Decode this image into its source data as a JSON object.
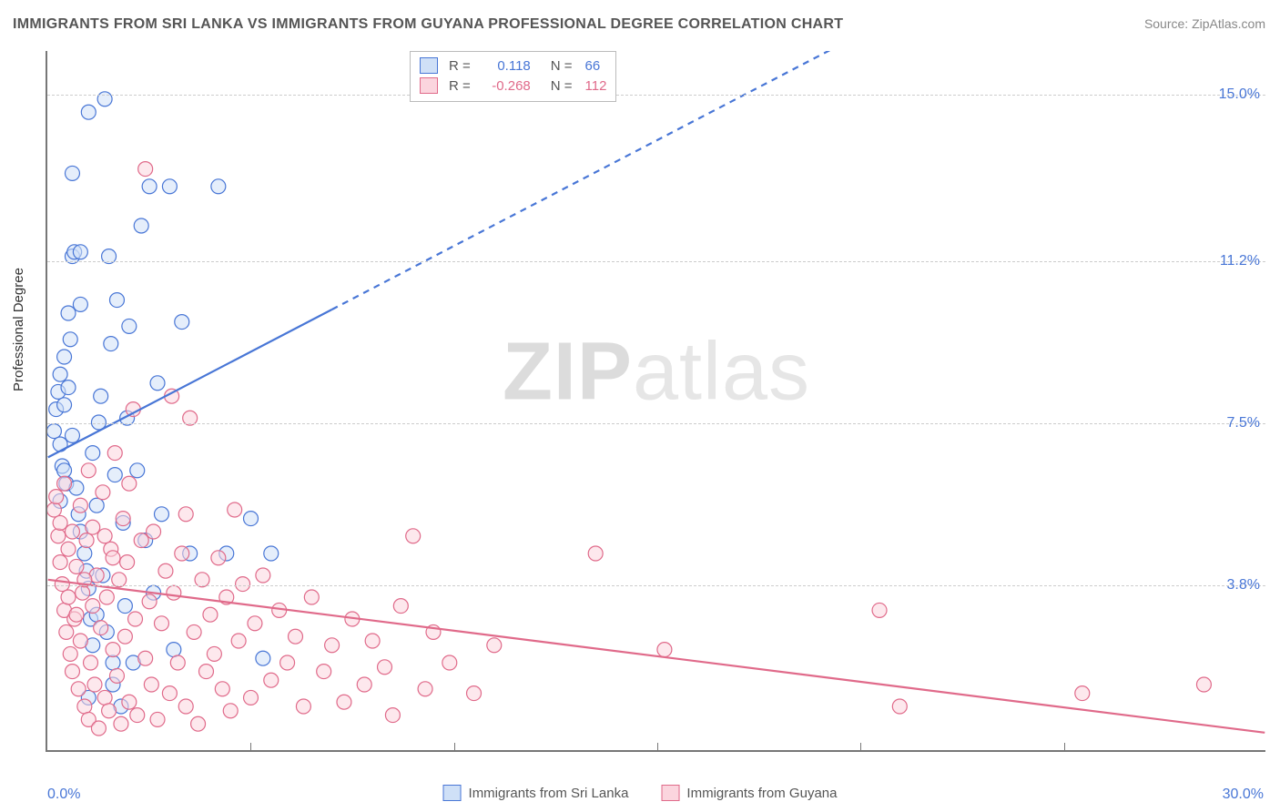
{
  "title": "IMMIGRANTS FROM SRI LANKA VS IMMIGRANTS FROM GUYANA PROFESSIONAL DEGREE CORRELATION CHART",
  "source_label": "Source: ",
  "source_name": "ZipAtlas.com",
  "watermark_a": "ZIP",
  "watermark_b": "atlas",
  "ylabel": "Professional Degree",
  "chart": {
    "type": "scatter",
    "background_color": "#ffffff",
    "grid_color": "#cccccc",
    "xlim": [
      0.0,
      30.0
    ],
    "ylim": [
      0.0,
      16.0
    ],
    "yticks": [
      3.8,
      7.5,
      11.2,
      15.0
    ],
    "ytick_labels": [
      "3.8%",
      "7.5%",
      "11.2%",
      "15.0%"
    ],
    "xtick_min": "0.0%",
    "xtick_max": "30.0%",
    "x_minor_ticks": [
      5,
      10,
      15,
      20,
      25
    ],
    "marker_radius": 8,
    "marker_stroke_width": 1.2,
    "series": [
      {
        "name": "Immigrants from Sri Lanka",
        "color_fill": "#cfe0f7",
        "color_stroke": "#4876d6",
        "fill_opacity": 0.55,
        "R": "0.118",
        "N": "66",
        "trend": {
          "y_at_xmin": 6.7,
          "y_at_xmax": 21.2,
          "solid_until_x": 7.0,
          "stroke_width": 2.2,
          "dash": "7,6"
        },
        "points": [
          [
            0.15,
            7.3
          ],
          [
            0.2,
            7.8
          ],
          [
            0.25,
            8.2
          ],
          [
            0.3,
            7.0
          ],
          [
            0.3,
            8.6
          ],
          [
            0.35,
            6.5
          ],
          [
            0.4,
            7.9
          ],
          [
            0.4,
            9.0
          ],
          [
            0.45,
            6.1
          ],
          [
            0.5,
            10.0
          ],
          [
            0.5,
            8.3
          ],
          [
            0.55,
            9.4
          ],
          [
            0.6,
            7.2
          ],
          [
            0.6,
            11.3
          ],
          [
            0.65,
            11.4
          ],
          [
            0.7,
            6.0
          ],
          [
            0.75,
            5.4
          ],
          [
            0.8,
            5.0
          ],
          [
            0.8,
            10.2
          ],
          [
            0.9,
            4.5
          ],
          [
            0.95,
            4.1
          ],
          [
            1.0,
            3.7
          ],
          [
            1.0,
            14.6
          ],
          [
            1.05,
            3.0
          ],
          [
            1.1,
            6.8
          ],
          [
            1.1,
            2.4
          ],
          [
            1.2,
            5.6
          ],
          [
            1.25,
            7.5
          ],
          [
            1.3,
            8.1
          ],
          [
            1.35,
            4.0
          ],
          [
            1.4,
            14.9
          ],
          [
            1.45,
            2.7
          ],
          [
            1.5,
            11.3
          ],
          [
            1.55,
            9.3
          ],
          [
            1.6,
            1.5
          ],
          [
            1.65,
            6.3
          ],
          [
            1.7,
            10.3
          ],
          [
            1.8,
            1.0
          ],
          [
            1.85,
            5.2
          ],
          [
            1.9,
            3.3
          ],
          [
            1.95,
            7.6
          ],
          [
            2.0,
            9.7
          ],
          [
            2.1,
            2.0
          ],
          [
            2.2,
            6.4
          ],
          [
            2.3,
            12.0
          ],
          [
            2.4,
            4.8
          ],
          [
            2.5,
            12.9
          ],
          [
            2.6,
            3.6
          ],
          [
            2.7,
            8.4
          ],
          [
            2.8,
            5.4
          ],
          [
            3.0,
            12.9
          ],
          [
            3.1,
            2.3
          ],
          [
            3.3,
            9.8
          ],
          [
            3.5,
            4.5
          ],
          [
            0.6,
            13.2
          ],
          [
            4.2,
            12.9
          ],
          [
            4.4,
            4.5
          ],
          [
            5.0,
            5.3
          ],
          [
            5.3,
            2.1
          ],
          [
            5.5,
            4.5
          ],
          [
            0.8,
            11.4
          ],
          [
            1.6,
            2.0
          ],
          [
            1.0,
            1.2
          ],
          [
            0.3,
            5.7
          ],
          [
            0.4,
            6.4
          ],
          [
            1.2,
            3.1
          ]
        ]
      },
      {
        "name": "Immigrants from Guyana",
        "color_fill": "#fbd5de",
        "color_stroke": "#e06a8a",
        "fill_opacity": 0.55,
        "R": "-0.268",
        "N": "112",
        "trend": {
          "y_at_xmin": 3.9,
          "y_at_xmax": 0.4,
          "solid_until_x": 30.0,
          "stroke_width": 2.2,
          "dash": ""
        },
        "points": [
          [
            0.15,
            5.5
          ],
          [
            0.2,
            5.8
          ],
          [
            0.25,
            4.9
          ],
          [
            0.3,
            4.3
          ],
          [
            0.3,
            5.2
          ],
          [
            0.35,
            3.8
          ],
          [
            0.4,
            3.2
          ],
          [
            0.4,
            6.1
          ],
          [
            0.45,
            2.7
          ],
          [
            0.5,
            4.6
          ],
          [
            0.5,
            3.5
          ],
          [
            0.55,
            2.2
          ],
          [
            0.6,
            5.0
          ],
          [
            0.6,
            1.8
          ],
          [
            0.65,
            3.0
          ],
          [
            0.7,
            4.2
          ],
          [
            0.75,
            1.4
          ],
          [
            0.8,
            5.6
          ],
          [
            0.8,
            2.5
          ],
          [
            0.85,
            3.6
          ],
          [
            0.9,
            1.0
          ],
          [
            0.95,
            4.8
          ],
          [
            1.0,
            0.7
          ],
          [
            1.0,
            6.4
          ],
          [
            1.05,
            2.0
          ],
          [
            1.1,
            3.3
          ],
          [
            1.1,
            5.1
          ],
          [
            1.15,
            1.5
          ],
          [
            1.2,
            4.0
          ],
          [
            1.25,
            0.5
          ],
          [
            1.3,
            2.8
          ],
          [
            1.35,
            5.9
          ],
          [
            1.4,
            1.2
          ],
          [
            1.45,
            3.5
          ],
          [
            1.5,
            0.9
          ],
          [
            1.55,
            4.6
          ],
          [
            1.6,
            2.3
          ],
          [
            1.65,
            6.8
          ],
          [
            1.7,
            1.7
          ],
          [
            1.75,
            3.9
          ],
          [
            1.8,
            0.6
          ],
          [
            1.85,
            5.3
          ],
          [
            1.9,
            2.6
          ],
          [
            1.95,
            4.3
          ],
          [
            2.0,
            1.1
          ],
          [
            2.1,
            7.8
          ],
          [
            2.15,
            3.0
          ],
          [
            2.2,
            0.8
          ],
          [
            2.3,
            4.8
          ],
          [
            2.4,
            2.1
          ],
          [
            2.5,
            3.4
          ],
          [
            2.55,
            1.5
          ],
          [
            2.6,
            5.0
          ],
          [
            2.7,
            0.7
          ],
          [
            2.8,
            2.9
          ],
          [
            2.9,
            4.1
          ],
          [
            3.0,
            1.3
          ],
          [
            3.05,
            8.1
          ],
          [
            3.1,
            3.6
          ],
          [
            3.2,
            2.0
          ],
          [
            3.3,
            4.5
          ],
          [
            3.4,
            1.0
          ],
          [
            3.5,
            7.6
          ],
          [
            3.6,
            2.7
          ],
          [
            3.7,
            0.6
          ],
          [
            3.8,
            3.9
          ],
          [
            3.9,
            1.8
          ],
          [
            4.0,
            3.1
          ],
          [
            4.1,
            2.2
          ],
          [
            4.2,
            4.4
          ],
          [
            4.3,
            1.4
          ],
          [
            4.4,
            3.5
          ],
          [
            4.5,
            0.9
          ],
          [
            4.7,
            2.5
          ],
          [
            4.8,
            3.8
          ],
          [
            5.0,
            1.2
          ],
          [
            5.1,
            2.9
          ],
          [
            5.3,
            4.0
          ],
          [
            5.5,
            1.6
          ],
          [
            5.7,
            3.2
          ],
          [
            5.9,
            2.0
          ],
          [
            6.1,
            2.6
          ],
          [
            6.3,
            1.0
          ],
          [
            6.5,
            3.5
          ],
          [
            6.8,
            1.8
          ],
          [
            7.0,
            2.4
          ],
          [
            7.3,
            1.1
          ],
          [
            7.5,
            3.0
          ],
          [
            7.8,
            1.5
          ],
          [
            8.0,
            2.5
          ],
          [
            8.3,
            1.9
          ],
          [
            8.5,
            0.8
          ],
          [
            8.7,
            3.3
          ],
          [
            9.0,
            4.9
          ],
          [
            9.3,
            1.4
          ],
          [
            9.5,
            2.7
          ],
          [
            9.9,
            2.0
          ],
          [
            10.5,
            1.3
          ],
          [
            11.0,
            2.4
          ],
          [
            13.5,
            4.5
          ],
          [
            15.2,
            2.3
          ],
          [
            20.5,
            3.2
          ],
          [
            21.0,
            1.0
          ],
          [
            25.5,
            1.3
          ],
          [
            28.5,
            1.5
          ],
          [
            2.4,
            13.3
          ],
          [
            1.6,
            4.4
          ],
          [
            0.9,
            3.9
          ],
          [
            0.7,
            3.1
          ],
          [
            1.4,
            4.9
          ],
          [
            2.0,
            6.1
          ],
          [
            3.4,
            5.4
          ],
          [
            4.6,
            5.5
          ]
        ]
      }
    ]
  },
  "legend_top": {
    "r_label": "R =",
    "n_label": "N ="
  }
}
